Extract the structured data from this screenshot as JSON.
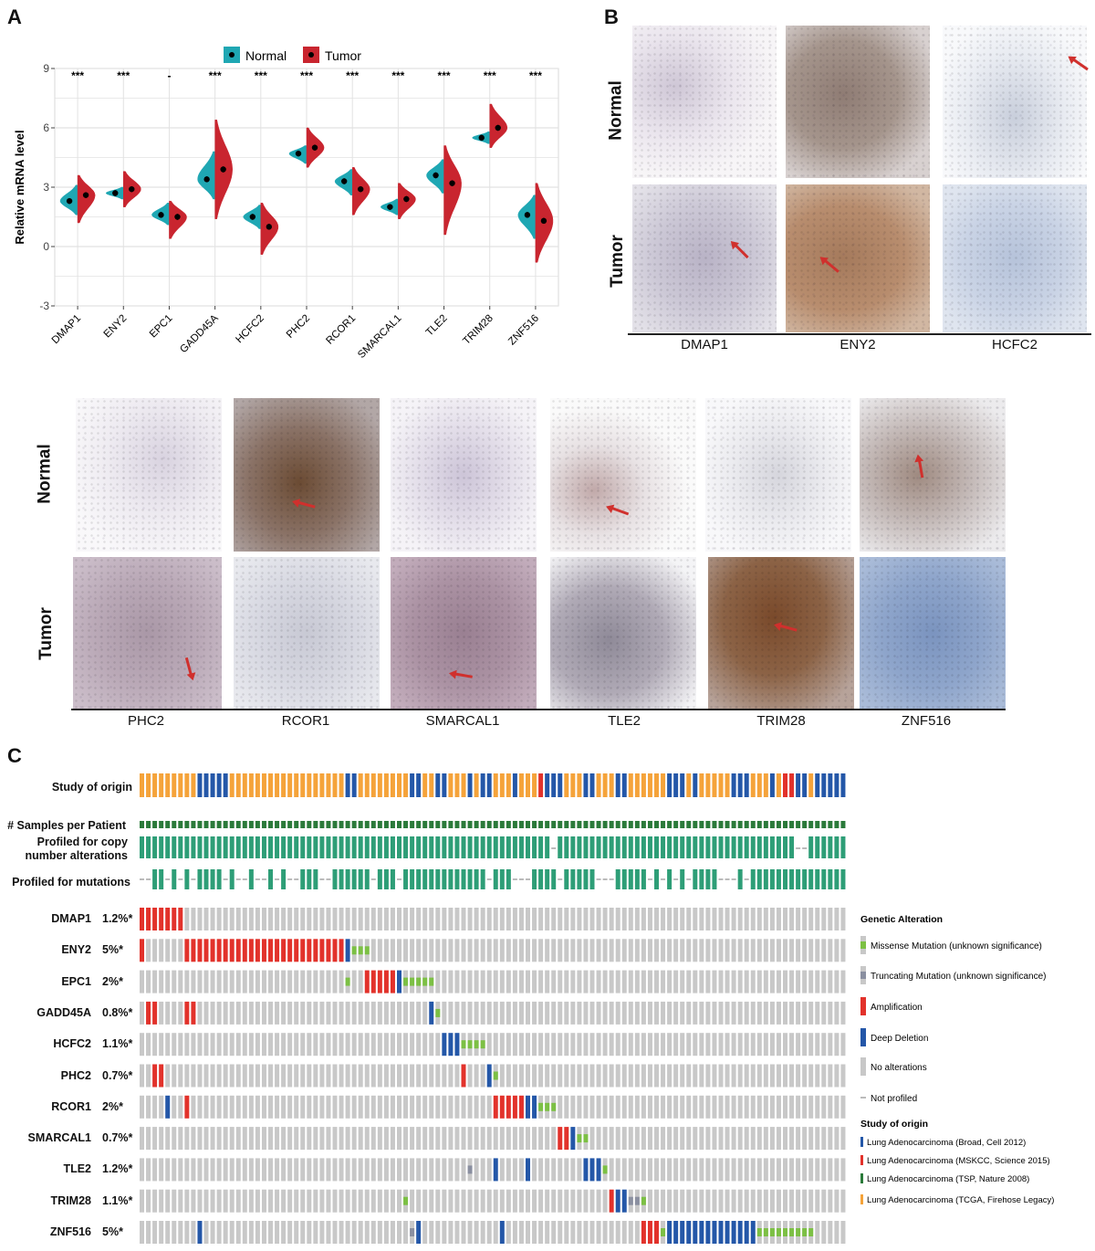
{
  "panels": {
    "a": "A",
    "b": "B",
    "c": "C"
  },
  "colors": {
    "normal": "#1fa7b3",
    "tumor": "#c9252f",
    "orange": "#f5a33a",
    "blue_study": "#2457a8",
    "deep_deletion": "#2457a8",
    "amplification": "#e2322b",
    "missense": "#7cc044",
    "truncating": "#8a8fa0",
    "no_alt": "#c8c8c8",
    "profiled": "#2e9e77",
    "samples": "#2b7a3a"
  },
  "chart_data": {
    "type": "violin",
    "legend": [
      "Normal",
      "Tumor"
    ],
    "legend_position": "top",
    "ylabel": "Relative mRNA level",
    "ylim": [
      -3,
      9
    ],
    "yticks": [
      -3,
      0,
      3,
      6,
      9
    ],
    "grid": true,
    "categories": [
      "DMAP1",
      "ENY2",
      "EPC1",
      "GADD45A",
      "HCFC2",
      "PHC2",
      "RCOR1",
      "SMARCAL1",
      "TLE2",
      "TRIM28",
      "ZNF516"
    ],
    "significance": [
      "***",
      "***",
      "-",
      "***",
      "***",
      "***",
      "***",
      "***",
      "***",
      "***",
      "***"
    ],
    "series": [
      {
        "name": "Normal",
        "median": [
          2.3,
          2.7,
          1.6,
          3.4,
          1.5,
          4.7,
          3.3,
          2.0,
          3.6,
          5.5,
          1.6
        ],
        "min": [
          1.6,
          2.4,
          1.1,
          2.4,
          0.9,
          4.2,
          2.6,
          1.6,
          2.7,
          5.2,
          0.4
        ],
        "max": [
          3.1,
          3.0,
          2.2,
          4.8,
          2.1,
          5.1,
          3.9,
          2.4,
          4.4,
          5.8,
          2.6
        ]
      },
      {
        "name": "Tumor",
        "median": [
          2.6,
          2.9,
          1.5,
          3.9,
          1.0,
          5.0,
          2.9,
          2.4,
          3.2,
          6.0,
          1.3
        ],
        "min": [
          1.2,
          2.0,
          0.4,
          1.4,
          -0.4,
          4.0,
          1.6,
          1.4,
          0.6,
          5.0,
          -0.8
        ],
        "max": [
          3.6,
          3.8,
          2.3,
          6.4,
          2.2,
          6.0,
          4.0,
          3.2,
          5.1,
          7.2,
          3.2
        ]
      }
    ]
  },
  "ihc": {
    "row_normal": "Normal",
    "row_tumor": "Tumor",
    "top_genes": [
      "DMAP1",
      "ENY2",
      "HCFC2"
    ],
    "bottom_genes": [
      "PHC2",
      "RCOR1",
      "SMARCAL1",
      "TLE2",
      "TRIM28",
      "ZNF516"
    ]
  },
  "oncoprint": {
    "tracks": {
      "study": "Study of origin",
      "samples": "# Samples per Patient",
      "cna": "Profiled for copy number alterations",
      "mutations": "Profiled for mutations"
    },
    "genes": [
      {
        "name": "DMAP1",
        "pct": "1.2%*"
      },
      {
        "name": "ENY2",
        "pct": "5%*"
      },
      {
        "name": "EPC1",
        "pct": "2%*"
      },
      {
        "name": "GADD45A",
        "pct": "0.8%*"
      },
      {
        "name": "HCFC2",
        "pct": "1.1%*"
      },
      {
        "name": "PHC2",
        "pct": "0.7%*"
      },
      {
        "name": "RCOR1",
        "pct": "2%*"
      },
      {
        "name": "SMARCAL1",
        "pct": "0.7%*"
      },
      {
        "name": "TLE2",
        "pct": "1.2%*"
      },
      {
        "name": "TRIM28",
        "pct": "1.1%*"
      },
      {
        "name": "ZNF516",
        "pct": "5%*"
      }
    ],
    "legend": {
      "title": "Genetic Alteration",
      "missense": "Missense Mutation (unknown significance)",
      "truncating": "Truncating Mutation (unknown significance)",
      "amplification": "Amplification",
      "deep_deletion": "Deep Deletion",
      "no_alt": "No alterations",
      "not_profiled": "Not profiled",
      "study_title": "Study of origin",
      "study1": "Lung Adenocarcinoma (Broad, Cell 2012)",
      "study2": "Lung Adenocarcinoma (MSKCC, Science 2015)",
      "study3": "Lung Adenocarcinoma (TSP, Nature 2008)",
      "study4": "Lung Adenocarcinoma (TCGA, Firehose Legacy)"
    }
  }
}
